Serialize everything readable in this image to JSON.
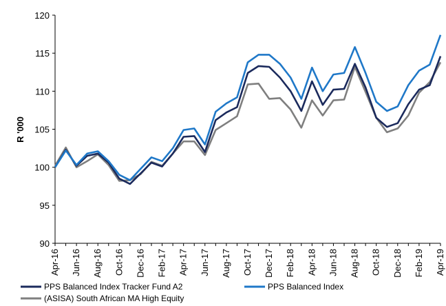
{
  "chart_data": {
    "type": "line",
    "y_label": "R '000",
    "categories": [
      "Apr-16",
      null,
      "Jun-16",
      null,
      "Aug-16",
      null,
      "Oct-16",
      null,
      "Dec-16",
      null,
      "Feb-17",
      null,
      "Apr-17",
      null,
      "Jun-17",
      null,
      "Aug-17",
      null,
      "Oct-17",
      null,
      "Dec-17",
      null,
      "Feb-18",
      null,
      "Apr-18",
      null,
      "Jun-18",
      null,
      "Aug-18",
      null,
      "Oct-18",
      null,
      "Dec-18",
      null,
      "Feb-19",
      null,
      "Apr-19"
    ],
    "series": [
      {
        "name": "PPS Balanced Index Tracker Fund A2",
        "color": "#1b2a5c",
        "values": [
          100,
          102.3,
          100.2,
          101.5,
          101.8,
          100.6,
          98.5,
          97.8,
          99.2,
          100.6,
          100.1,
          101.8,
          104.0,
          104.1,
          102.0,
          106.2,
          107.2,
          107.9,
          112.4,
          113.3,
          113.2,
          111.8,
          110.0,
          107.4,
          111.3,
          108.2,
          110.2,
          110.3,
          113.6,
          110.5,
          106.5,
          105.3,
          105.8,
          108.3,
          110.2,
          110.8,
          114.6
        ]
      },
      {
        "name": "PPS Balanced Index",
        "color": "#1f78c8",
        "values": [
          100,
          102.2,
          100.3,
          101.8,
          102.1,
          100.8,
          99.0,
          98.3,
          99.8,
          101.3,
          100.8,
          102.5,
          104.9,
          105.1,
          103.0,
          107.3,
          108.4,
          109.2,
          113.8,
          114.8,
          114.8,
          113.6,
          111.8,
          109.0,
          113.1,
          110.0,
          112.2,
          112.4,
          115.8,
          112.4,
          108.6,
          107.4,
          108.0,
          110.8,
          112.7,
          113.5,
          117.4
        ]
      },
      {
        "name": "(ASISA) South African MA High Equity",
        "color": "#7f7f7f",
        "values": [
          100.2,
          102.6,
          100.0,
          100.8,
          101.7,
          100.3,
          98.2,
          98.3,
          99.1,
          100.7,
          100.2,
          101.8,
          103.4,
          103.4,
          101.6,
          104.9,
          105.8,
          106.7,
          110.9,
          111.0,
          109.0,
          109.1,
          107.6,
          105.2,
          108.8,
          106.8,
          108.8,
          108.9,
          113.2,
          109.9,
          106.5,
          104.6,
          105.1,
          106.8,
          109.8,
          111.2,
          113.8
        ]
      }
    ],
    "ylim": [
      90,
      120
    ],
    "yticks": [
      90,
      95,
      100,
      105,
      110,
      115,
      120
    ],
    "grid": false
  }
}
